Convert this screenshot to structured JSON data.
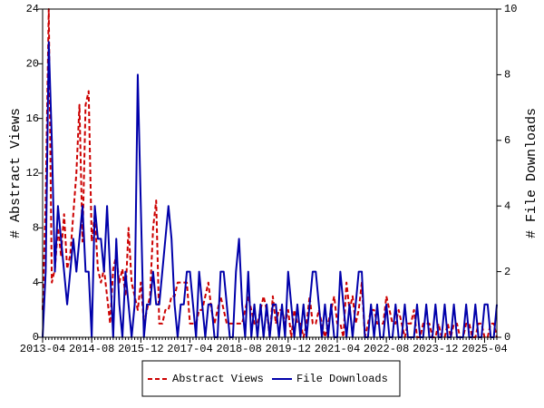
{
  "chart_data": {
    "type": "line",
    "x": [
      "2013-04",
      "2013-05",
      "2013-06",
      "2013-07",
      "2013-08",
      "2013-09",
      "2013-10",
      "2013-11",
      "2013-12",
      "2014-01",
      "2014-02",
      "2014-03",
      "2014-04",
      "2014-05",
      "2014-06",
      "2014-07",
      "2014-08",
      "2014-09",
      "2014-10",
      "2014-11",
      "2014-12",
      "2015-01",
      "2015-02",
      "2015-03",
      "2015-04",
      "2015-05",
      "2015-06",
      "2015-07",
      "2015-08",
      "2015-09",
      "2015-10",
      "2015-11",
      "2015-12",
      "2016-01",
      "2016-02",
      "2016-03",
      "2016-04",
      "2016-05",
      "2016-06",
      "2016-07",
      "2016-08",
      "2016-09",
      "2016-10",
      "2016-11",
      "2016-12",
      "2017-01",
      "2017-02",
      "2017-03",
      "2017-04",
      "2017-05",
      "2017-06",
      "2017-07",
      "2017-08",
      "2017-09",
      "2017-10",
      "2017-11",
      "2017-12",
      "2018-01",
      "2018-02",
      "2018-03",
      "2018-04",
      "2018-05",
      "2018-06",
      "2018-07",
      "2018-08",
      "2018-09",
      "2018-10",
      "2018-11",
      "2018-12",
      "2019-01",
      "2019-02",
      "2019-03",
      "2019-04",
      "2019-05",
      "2019-06",
      "2019-07",
      "2019-08",
      "2019-09",
      "2019-10",
      "2019-11",
      "2019-12",
      "2020-01",
      "2020-02",
      "2020-03",
      "2020-04",
      "2020-05",
      "2020-06",
      "2020-07",
      "2020-08",
      "2020-09",
      "2020-10",
      "2020-11",
      "2020-12",
      "2021-01",
      "2021-02",
      "2021-03",
      "2021-04",
      "2021-05",
      "2021-06",
      "2021-07",
      "2021-08",
      "2021-09",
      "2021-10",
      "2021-11",
      "2021-12",
      "2022-01",
      "2022-02",
      "2022-03",
      "2022-04",
      "2022-05",
      "2022-06",
      "2022-07",
      "2022-08",
      "2022-09",
      "2022-10",
      "2022-11",
      "2022-12",
      "2023-01",
      "2023-02",
      "2023-03",
      "2023-04",
      "2023-05",
      "2023-06",
      "2023-07",
      "2023-08",
      "2023-09",
      "2023-10",
      "2023-11",
      "2023-12",
      "2024-01",
      "2024-02",
      "2024-03",
      "2024-04",
      "2024-05",
      "2024-06",
      "2024-07",
      "2024-08",
      "2024-09",
      "2024-10",
      "2024-11",
      "2024-12",
      "2025-01",
      "2025-02",
      "2025-03",
      "2025-04",
      "2025-05",
      "2025-06",
      "2025-07",
      "2025-08"
    ],
    "xlim": [
      "2013-04",
      "2025-08"
    ],
    "xticks": [
      "2013-04",
      "2014-08",
      "2015-12",
      "2017-04",
      "2018-08",
      "2019-12",
      "2021-04",
      "2022-08",
      "2023-12",
      "2025-04"
    ],
    "ylabel": "# Abstract Views",
    "ylim": [
      0,
      24
    ],
    "yticks": [
      0,
      4,
      8,
      12,
      16,
      20,
      24
    ],
    "y2label": "# File Downloads",
    "y2lim": [
      0,
      10
    ],
    "y2ticks": [
      0,
      2,
      4,
      6,
      8,
      10
    ],
    "series": [
      {
        "name": "Abstract Views",
        "color": "#cc0000",
        "dash": true,
        "values": [
          2,
          10,
          24,
          4,
          5,
          8,
          6,
          9,
          5,
          6,
          9,
          12,
          17,
          7,
          17,
          18,
          7,
          9,
          5,
          4,
          5,
          3,
          1,
          5,
          6,
          4,
          5,
          3,
          8,
          4,
          3,
          2,
          4,
          1,
          2,
          3,
          8,
          10,
          1,
          1,
          2,
          2,
          3,
          3,
          4,
          4,
          4,
          4,
          1,
          1,
          1,
          2,
          2,
          3,
          4,
          2,
          1,
          2,
          3,
          2,
          1,
          1,
          1,
          1,
          1,
          1,
          2,
          3,
          2,
          1,
          1,
          2,
          3,
          2,
          0,
          3,
          1,
          2,
          2,
          1,
          2,
          0,
          2,
          1,
          1,
          0,
          1,
          3,
          1,
          1,
          2,
          1,
          0,
          1,
          2,
          3,
          1,
          1,
          0,
          4,
          2,
          3,
          1,
          2,
          4,
          0,
          1,
          2,
          2,
          1,
          1,
          1,
          3,
          2,
          1,
          1,
          2,
          1,
          0,
          1,
          1,
          2,
          0,
          0,
          1,
          1,
          1,
          0,
          0,
          1,
          0,
          0,
          1,
          0,
          1,
          1,
          0,
          0,
          1,
          1,
          0,
          0,
          1,
          1,
          0,
          0,
          1,
          1,
          0
        ]
      },
      {
        "name": "File Downloads",
        "color": "#0000aa",
        "dash": false,
        "axis": "y2",
        "values": [
          0,
          2,
          9,
          6,
          2,
          4,
          3,
          2,
          1,
          2,
          3,
          2,
          3,
          4,
          2,
          2,
          0,
          4,
          3,
          3,
          2,
          4,
          2,
          0,
          3,
          1,
          0,
          2,
          1,
          0,
          1,
          8,
          4,
          0,
          1,
          1,
          2,
          1,
          1,
          2,
          3,
          4,
          3,
          1,
          0,
          1,
          1,
          2,
          2,
          1,
          0,
          2,
          1,
          0,
          1,
          1,
          0,
          0,
          2,
          2,
          1,
          0,
          0,
          2,
          3,
          1,
          0,
          2,
          0,
          1,
          0,
          1,
          0,
          1,
          0,
          1,
          1,
          0,
          1,
          0,
          2,
          1,
          0,
          1,
          0,
          1,
          0,
          1,
          2,
          2,
          1,
          0,
          1,
          0,
          1,
          0,
          0,
          2,
          1,
          0,
          1,
          0,
          1,
          2,
          2,
          0,
          0,
          1,
          0,
          1,
          0,
          0,
          1,
          0,
          0,
          1,
          0,
          0,
          1,
          0,
          0,
          0,
          1,
          0,
          0,
          1,
          0,
          0,
          1,
          0,
          0,
          1,
          0,
          0,
          1,
          0,
          0,
          0,
          1,
          0,
          0,
          1,
          0,
          0,
          1,
          1,
          0,
          0,
          1
        ]
      }
    ],
    "legend": "bottom"
  }
}
